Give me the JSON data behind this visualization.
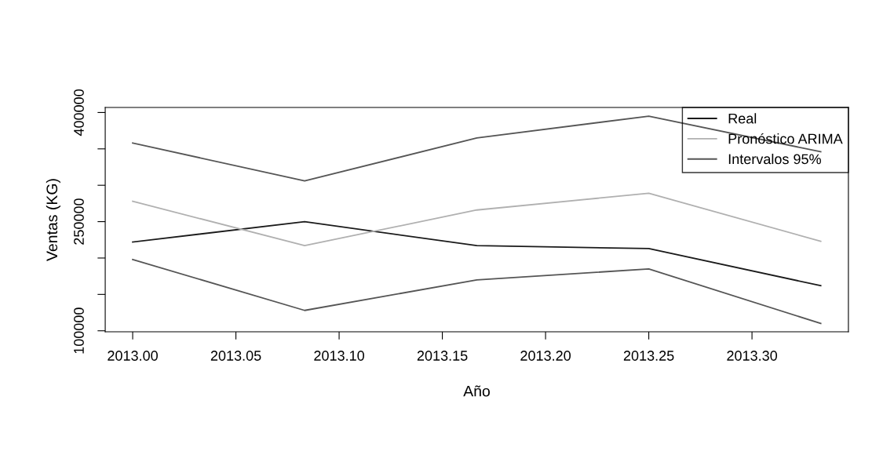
{
  "chart_data": {
    "type": "line",
    "xlabel": "Año",
    "ylabel": "Ventas (KG)",
    "x": [
      2013.0,
      2013.0833,
      2013.1667,
      2013.25,
      2013.3333
    ],
    "series": [
      {
        "name": "Real",
        "color": "#1a1a1a",
        "values": [
          222000,
          250000,
          217000,
          213000,
          162000
        ]
      },
      {
        "name": "Pronóstico ARIMA",
        "color": "#b0b0b0",
        "values": [
          278000,
          217000,
          266000,
          289000,
          223000
        ]
      },
      {
        "name": "Intervalos 95%",
        "color": "#555555",
        "values": [
          358000,
          306000,
          365000,
          395000,
          346000
        ]
      },
      {
        "color": "#555555",
        "values": [
          198000,
          128000,
          170000,
          185000,
          110000
        ]
      }
    ],
    "xlim": [
      2012.9867,
      2013.3467
    ],
    "ylim": [
      98600,
      406900
    ],
    "xticks": [
      {
        "value": 2013.0,
        "label": "2013.00"
      },
      {
        "value": 2013.05,
        "label": "2013.05"
      },
      {
        "value": 2013.1,
        "label": "2013.10"
      },
      {
        "value": 2013.15,
        "label": "2013.15"
      },
      {
        "value": 2013.2,
        "label": "2013.20"
      },
      {
        "value": 2013.25,
        "label": "2013.25"
      },
      {
        "value": 2013.3,
        "label": "2013.30"
      }
    ],
    "yticks": [
      100000,
      {
        "value": 150000,
        "label": null
      },
      {
        "value": 200000,
        "label": null
      },
      250000,
      {
        "value": 300000,
        "label": null
      },
      {
        "value": 350000,
        "label": null
      },
      400000
    ],
    "legend": "top right",
    "grid": false,
    "marker": "none",
    "line_style": "solid"
  }
}
